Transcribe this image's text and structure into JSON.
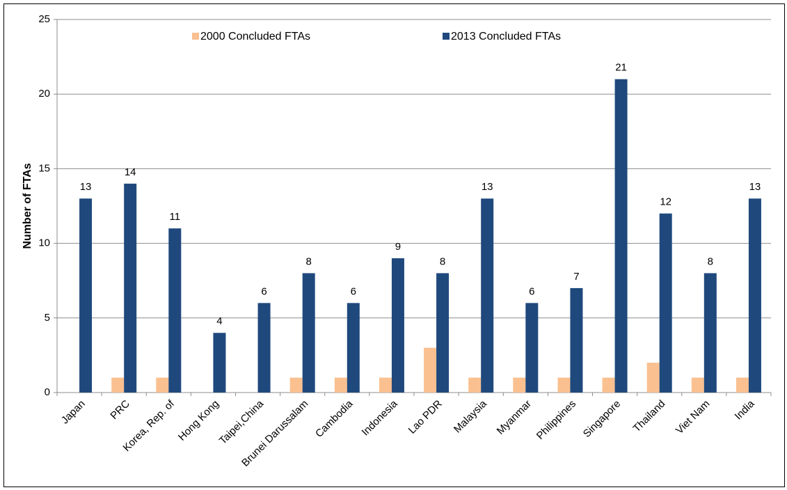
{
  "chart_data": {
    "type": "bar",
    "y_label": "Number of FTAs",
    "categories": [
      "Japan",
      "PRC",
      "Korea, Rep. of",
      "Hong Kong",
      "Taipei,China",
      "Brunei Darussalam",
      "Cambodia",
      "Indonesia",
      "Lao PDR",
      "Malaysia",
      "Myanmar",
      "Philippines",
      "Singapore",
      "Thailand",
      "Viet Nam",
      "India"
    ],
    "series": [
      {
        "name": "2000 Concluded FTAs",
        "color": "#fac090",
        "values": [
          0,
          1,
          1,
          0,
          0,
          1,
          1,
          1,
          3,
          1,
          1,
          1,
          1,
          2,
          1,
          1
        ],
        "show_labels": false
      },
      {
        "name": "2013 Concluded FTAs",
        "color": "#1f497d",
        "values": [
          13,
          14,
          11,
          4,
          6,
          8,
          6,
          9,
          8,
          13,
          6,
          7,
          21,
          12,
          8,
          13
        ],
        "show_labels": true
      }
    ],
    "ylim": [
      0,
      25
    ],
    "yticks": [
      0,
      5,
      10,
      15,
      20,
      25
    ],
    "grid": true,
    "legend": "top"
  }
}
